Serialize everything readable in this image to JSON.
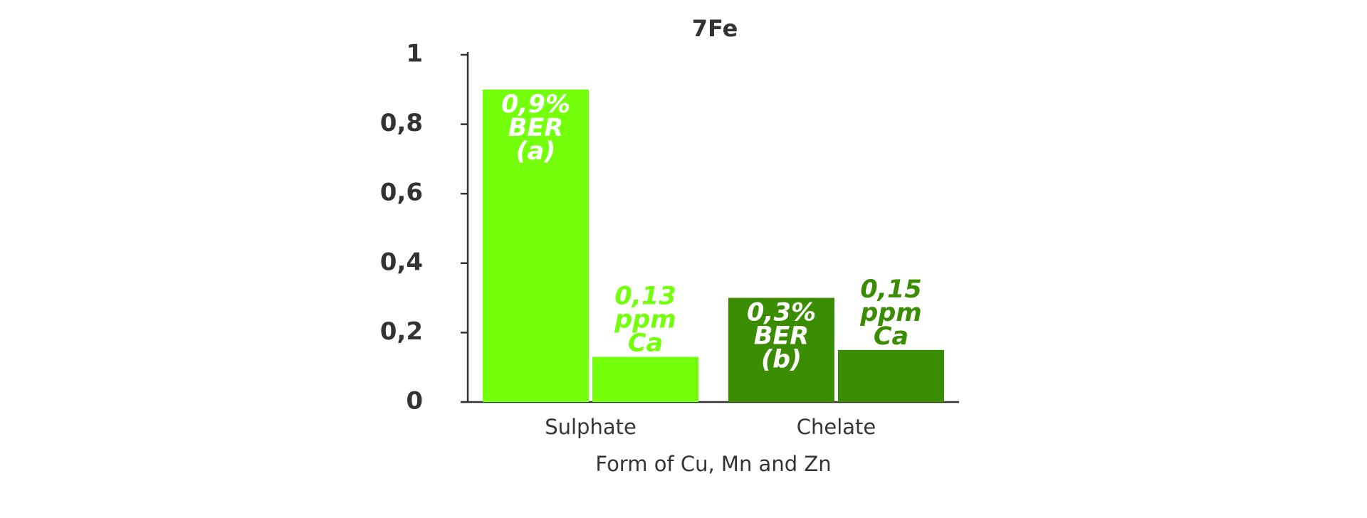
{
  "chart_data": {
    "type": "bar",
    "title": "7Fe",
    "x_label": "Form of Cu, Mn and Zn",
    "categories": [
      "Sulphate",
      "Chelate"
    ],
    "category_colors": [
      "#74ff0a",
      "#3a8c00"
    ],
    "series": [
      {
        "values": [
          0.9,
          0.3
        ],
        "value_labels": [
          "0,9%\nBER\n(a)",
          "0,3%\nBER\n(b)"
        ],
        "label_position": "inside"
      },
      {
        "values": [
          0.13,
          0.15
        ],
        "value_labels": [
          "0,13\nppm\nCa",
          "0,15\nppm\nCa"
        ],
        "label_position": "above"
      }
    ],
    "ylim": [
      0,
      1
    ],
    "yticks": [
      0,
      {
        "value": 0.2,
        "label": "0,2"
      },
      {
        "value": 0.4,
        "label": "0,4"
      },
      {
        "value": 0.6,
        "label": "0,6"
      },
      {
        "value": 0.8,
        "label": "0,8"
      },
      1
    ],
    "grid": false
  }
}
